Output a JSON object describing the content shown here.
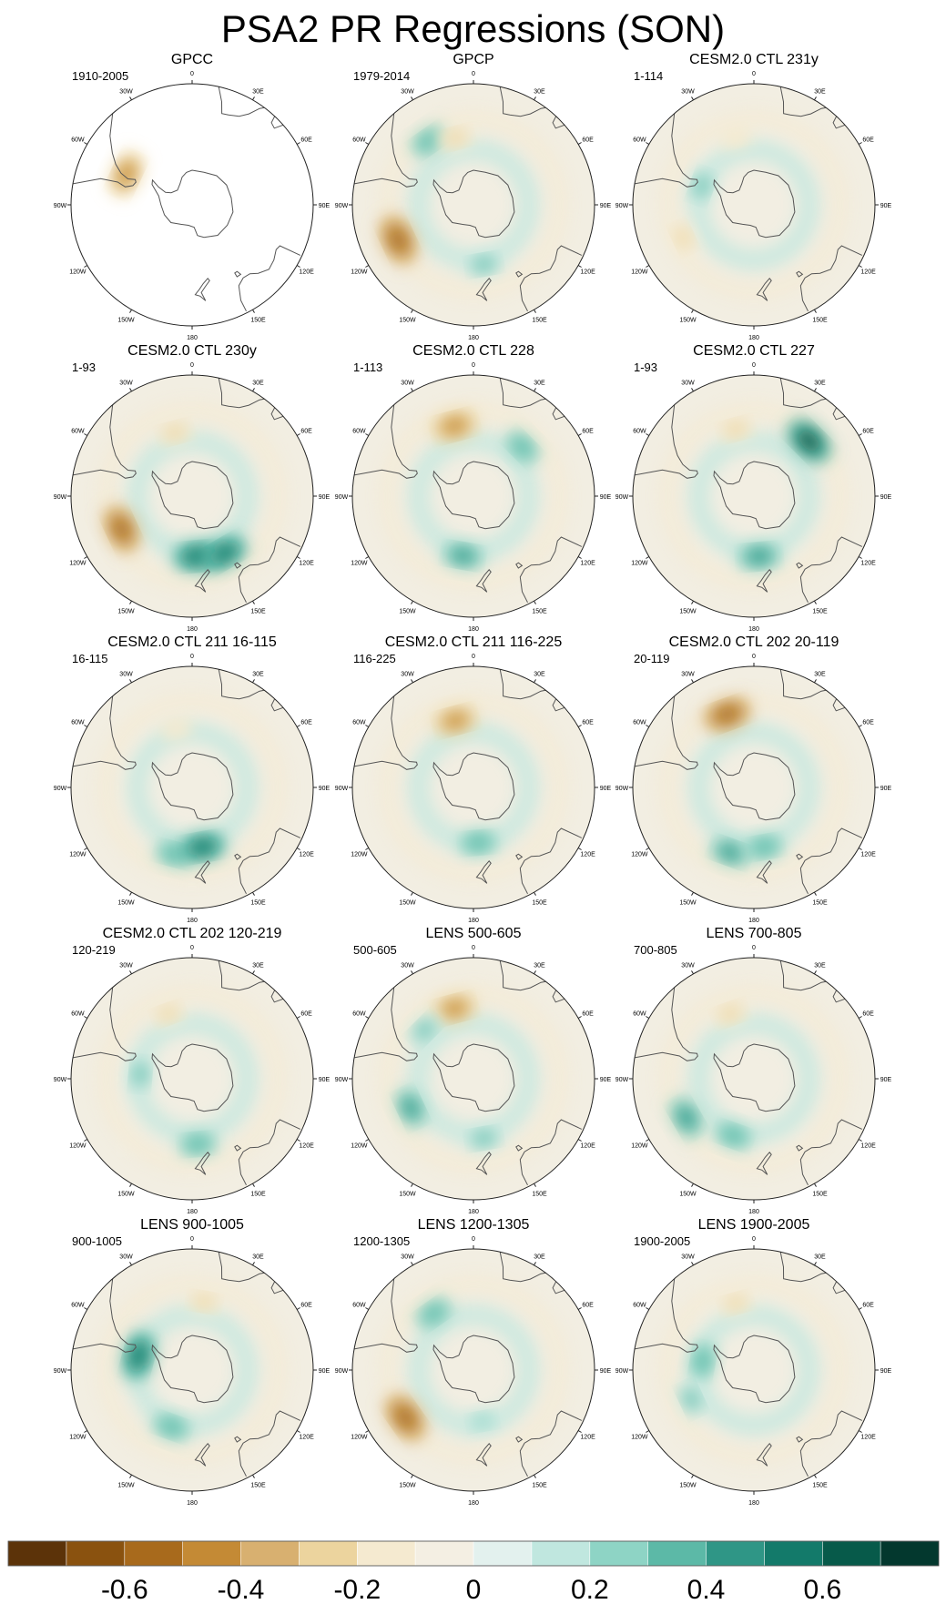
{
  "figure_title": "PSA2 PR Regressions (SON)",
  "chart_data": {
    "type": "heatmap",
    "projection": "south-polar-stereographic",
    "variable": "precipitation regression on PSA2 index",
    "season": "SON",
    "longitude_labels": [
      "0",
      "30E",
      "60E",
      "90E",
      "120E",
      "150E",
      "180",
      "150W",
      "120W",
      "90W",
      "60W",
      "30W"
    ],
    "panels": [
      {
        "title": "GPCC",
        "period": "1910-2005",
        "coverage": "land-only",
        "anomalies": [
          {
            "lon": -65,
            "lat": -48,
            "value": -0.5
          }
        ]
      },
      {
        "title": "GPCP",
        "period": "1979-2014",
        "coverage": "global",
        "anomalies": [
          {
            "lon": -115,
            "lat": -42,
            "value": -0.6
          },
          {
            "lon": -35,
            "lat": -45,
            "value": 0.35
          },
          {
            "lon": -15,
            "lat": -50,
            "value": -0.3
          },
          {
            "lon": 170,
            "lat": -55,
            "value": 0.3
          }
        ]
      },
      {
        "title": "CESM2.0 CTL 231y",
        "period": "1-114",
        "coverage": "global",
        "anomalies": [
          {
            "lon": -15,
            "lat": -50,
            "value": -0.2
          },
          {
            "lon": -115,
            "lat": -45,
            "value": -0.25
          },
          {
            "lon": -70,
            "lat": -58,
            "value": 0.3
          }
        ]
      },
      {
        "title": "CESM2.0 CTL 230y",
        "period": "1-93",
        "coverage": "global",
        "anomalies": [
          {
            "lon": -115,
            "lat": -45,
            "value": -0.55
          },
          {
            "lon": -15,
            "lat": -52,
            "value": -0.3
          },
          {
            "lon": 175,
            "lat": -55,
            "value": 0.55
          },
          {
            "lon": 150,
            "lat": -52,
            "value": 0.5
          }
        ]
      },
      {
        "title": "CESM2.0 CTL 228",
        "period": "1-113",
        "coverage": "global",
        "anomalies": [
          {
            "lon": -15,
            "lat": -48,
            "value": -0.5
          },
          {
            "lon": 45,
            "lat": -50,
            "value": 0.35
          },
          {
            "lon": -170,
            "lat": -55,
            "value": 0.4
          }
        ]
      },
      {
        "title": "CESM2.0 CTL 227",
        "period": "1-93",
        "coverage": "global",
        "anomalies": [
          {
            "lon": 45,
            "lat": -45,
            "value": 0.6
          },
          {
            "lon": -15,
            "lat": -50,
            "value": -0.3
          },
          {
            "lon": 175,
            "lat": -55,
            "value": 0.45
          }
        ]
      },
      {
        "title": "CESM2.0 CTL 211 16-115",
        "period": "16-115",
        "coverage": "global",
        "anomalies": [
          {
            "lon": -165,
            "lat": -50,
            "value": 0.35
          },
          {
            "lon": 170,
            "lat": -55,
            "value": 0.5
          },
          {
            "lon": -15,
            "lat": -55,
            "value": -0.2
          }
        ]
      },
      {
        "title": "CESM2.0 CTL 211 116-225",
        "period": "116-225",
        "coverage": "global",
        "anomalies": [
          {
            "lon": -15,
            "lat": -50,
            "value": -0.45
          },
          {
            "lon": 175,
            "lat": -58,
            "value": 0.35
          }
        ]
      },
      {
        "title": "CESM2.0 CTL 202 20-119",
        "period": "20-119",
        "coverage": "global",
        "anomalies": [
          {
            "lon": -20,
            "lat": -45,
            "value": -0.55
          },
          {
            "lon": -160,
            "lat": -50,
            "value": 0.4
          },
          {
            "lon": 170,
            "lat": -55,
            "value": 0.35
          }
        ]
      },
      {
        "title": "CESM2.0 CTL 202 120-219",
        "period": "120-219",
        "coverage": "global",
        "anomalies": [
          {
            "lon": -20,
            "lat": -50,
            "value": -0.25
          },
          {
            "lon": 175,
            "lat": -52,
            "value": 0.35
          },
          {
            "lon": -85,
            "lat": -60,
            "value": 0.3
          }
        ]
      },
      {
        "title": "LENS 500-605",
        "period": "500-605",
        "coverage": "global",
        "anomalies": [
          {
            "lon": -15,
            "lat": -48,
            "value": -0.45
          },
          {
            "lon": -115,
            "lat": -50,
            "value": 0.4
          },
          {
            "lon": -45,
            "lat": -50,
            "value": 0.3
          },
          {
            "lon": 170,
            "lat": -55,
            "value": 0.3
          }
        ]
      },
      {
        "title": "LENS 700-805",
        "period": "700-805",
        "coverage": "global",
        "anomalies": [
          {
            "lon": -120,
            "lat": -45,
            "value": 0.45
          },
          {
            "lon": -20,
            "lat": -50,
            "value": -0.3
          },
          {
            "lon": -160,
            "lat": -55,
            "value": 0.35
          }
        ]
      },
      {
        "title": "LENS 900-1005",
        "period": "900-1005",
        "coverage": "global",
        "anomalies": [
          {
            "lon": -75,
            "lat": -58,
            "value": 0.55
          },
          {
            "lon": -160,
            "lat": -55,
            "value": 0.35
          },
          {
            "lon": 10,
            "lat": -50,
            "value": -0.25
          }
        ]
      },
      {
        "title": "LENS 1200-1305",
        "period": "1200-1305",
        "coverage": "global",
        "anomalies": [
          {
            "lon": -125,
            "lat": -42,
            "value": -0.6
          },
          {
            "lon": -35,
            "lat": -50,
            "value": 0.35
          },
          {
            "lon": 170,
            "lat": -60,
            "value": 0.2
          }
        ]
      },
      {
        "title": "LENS 1900-2005",
        "period": "1900-2005",
        "coverage": "global",
        "anomalies": [
          {
            "lon": -80,
            "lat": -60,
            "value": 0.35
          },
          {
            "lon": -15,
            "lat": -50,
            "value": -0.25
          },
          {
            "lon": -115,
            "lat": -50,
            "value": 0.3
          }
        ]
      }
    ],
    "colorbar": {
      "levels": [
        -0.7,
        -0.6,
        -0.5,
        -0.4,
        -0.3,
        -0.2,
        -0.1,
        0,
        0.1,
        0.2,
        0.3,
        0.4,
        0.5,
        0.6,
        0.7
      ],
      "colors": [
        "#5c3309",
        "#8a520f",
        "#a86a1c",
        "#c48a35",
        "#d8b070",
        "#ecd49e",
        "#f5ead0",
        "#f4efe3",
        "#e3f1ee",
        "#c0e7df",
        "#8ed4c5",
        "#5cb9a7",
        "#2f9686",
        "#137a6a",
        "#075a4a",
        "#03382e"
      ],
      "tick_labels": [
        "-0.6",
        "-0.4",
        "-0.2",
        "0",
        "0.2",
        "0.4",
        "0.6"
      ],
      "tick_values": [
        -0.6,
        -0.4,
        -0.2,
        0,
        0.2,
        0.4,
        0.6
      ]
    }
  }
}
